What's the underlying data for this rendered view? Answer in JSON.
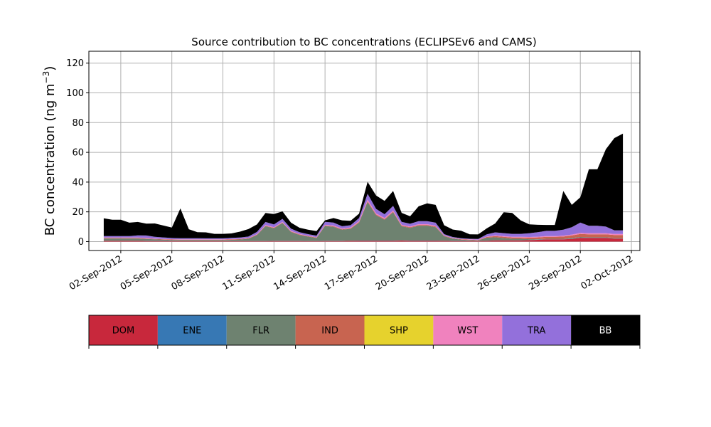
{
  "chart_data": {
    "type": "area",
    "title": "Source contribution to BC concentrations (ECLIPSEv6 and CAMS)",
    "xlabel": "",
    "ylabel": "BC concentration (ng m⁻³)",
    "ylabel_parts": [
      "BC concentration (ng m",
      "−3",
      ")"
    ],
    "stacked": true,
    "grid": true,
    "legend_position": "below plot, as a horizontal colour bar",
    "xlim": [
      "2012-08-31T03:00",
      "2012-10-02T12:00"
    ],
    "ylim": [
      -6,
      128
    ],
    "xticks": [
      {
        "date": "2012-09-02",
        "label": "02-Sep-2012"
      },
      {
        "date": "2012-09-05",
        "label": "05-Sep-2012"
      },
      {
        "date": "2012-09-08",
        "label": "08-Sep-2012"
      },
      {
        "date": "2012-09-11",
        "label": "11-Sep-2012"
      },
      {
        "date": "2012-09-14",
        "label": "14-Sep-2012"
      },
      {
        "date": "2012-09-17",
        "label": "17-Sep-2012"
      },
      {
        "date": "2012-09-20",
        "label": "20-Sep-2012"
      },
      {
        "date": "2012-09-23",
        "label": "23-Sep-2012"
      },
      {
        "date": "2012-09-26",
        "label": "26-Sep-2012"
      },
      {
        "date": "2012-09-29",
        "label": "29-Sep-2012"
      },
      {
        "date": "2012-10-02",
        "label": "02-Oct-2012"
      }
    ],
    "yticks": [
      0,
      20,
      40,
      60,
      80,
      100,
      120
    ],
    "x": [
      "2012-09-01T00:00",
      "2012-09-01T12:00",
      "2012-09-02T00:00",
      "2012-09-02T12:00",
      "2012-09-03T00:00",
      "2012-09-03T12:00",
      "2012-09-04T00:00",
      "2012-09-04T12:00",
      "2012-09-05T00:00",
      "2012-09-05T12:00",
      "2012-09-06T00:00",
      "2012-09-06T12:00",
      "2012-09-07T00:00",
      "2012-09-07T12:00",
      "2012-09-08T00:00",
      "2012-09-08T12:00",
      "2012-09-09T00:00",
      "2012-09-09T12:00",
      "2012-09-10T00:00",
      "2012-09-10T12:00",
      "2012-09-11T00:00",
      "2012-09-11T12:00",
      "2012-09-12T00:00",
      "2012-09-12T12:00",
      "2012-09-13T00:00",
      "2012-09-13T12:00",
      "2012-09-14T00:00",
      "2012-09-14T12:00",
      "2012-09-15T00:00",
      "2012-09-15T12:00",
      "2012-09-16T00:00",
      "2012-09-16T12:00",
      "2012-09-17T00:00",
      "2012-09-17T12:00",
      "2012-09-18T00:00",
      "2012-09-18T12:00",
      "2012-09-19T00:00",
      "2012-09-19T12:00",
      "2012-09-20T00:00",
      "2012-09-20T12:00",
      "2012-09-21T00:00",
      "2012-09-21T12:00",
      "2012-09-22T00:00",
      "2012-09-22T12:00",
      "2012-09-23T00:00",
      "2012-09-23T12:00",
      "2012-09-24T00:00",
      "2012-09-24T12:00",
      "2012-09-25T00:00",
      "2012-09-25T12:00",
      "2012-09-26T00:00",
      "2012-09-26T12:00",
      "2012-09-27T00:00",
      "2012-09-27T12:00",
      "2012-09-28T00:00",
      "2012-09-28T12:00",
      "2012-09-29T00:00",
      "2012-09-29T12:00",
      "2012-09-30T00:00",
      "2012-09-30T12:00",
      "2012-10-01T00:00",
      "2012-10-01T12:00"
    ],
    "series": [
      {
        "name": "DOM",
        "color": "#c8283c",
        "values": [
          0.5,
          0.5,
          0.5,
          0.5,
          0.5,
          0.4,
          0.4,
          0.4,
          0.3,
          0.3,
          0.3,
          0.3,
          0.3,
          0.3,
          0.3,
          0.3,
          0.3,
          0.3,
          0.3,
          0.3,
          0.4,
          0.4,
          0.4,
          0.4,
          0.3,
          0.3,
          0.4,
          0.4,
          0.4,
          0.5,
          0.6,
          0.6,
          0.6,
          0.6,
          0.6,
          0.7,
          0.6,
          0.6,
          0.6,
          0.6,
          0.5,
          0.4,
          0.4,
          0.4,
          0.4,
          0.5,
          0.8,
          0.8,
          0.8,
          0.8,
          1.0,
          1.2,
          1.5,
          1.5,
          1.5,
          1.8,
          2.5,
          2.5,
          2.5,
          2.5,
          2.0,
          2.0
        ]
      },
      {
        "name": "ENE",
        "color": "#3778b4",
        "values": [
          0.1,
          0.1,
          0.1,
          0.1,
          0.1,
          0.1,
          0.1,
          0.1,
          0.1,
          0.1,
          0.1,
          0.1,
          0.1,
          0.1,
          0.1,
          0.1,
          0.1,
          0.1,
          0.1,
          0.1,
          0.1,
          0.1,
          0.1,
          0.1,
          0.1,
          0.1,
          0.1,
          0.1,
          0.1,
          0.1,
          0.1,
          0.1,
          0.1,
          0.1,
          0.1,
          0.1,
          0.1,
          0.1,
          0.1,
          0.1,
          0.1,
          0.1,
          0.1,
          0.1,
          0.1,
          0.1,
          0.1,
          0.1,
          0.1,
          0.1,
          0.1,
          0.1,
          0.1,
          0.1,
          0.1,
          0.1,
          0.1,
          0.1,
          0.1,
          0.1,
          0.1,
          0.1
        ]
      },
      {
        "name": "FLR",
        "color": "#6e8270",
        "values": [
          1.5,
          1.5,
          1.5,
          1.5,
          1.5,
          1.3,
          1.0,
          0.8,
          0.7,
          0.6,
          0.6,
          0.6,
          0.6,
          0.6,
          0.6,
          0.8,
          1.0,
          1.5,
          4.0,
          10,
          8.5,
          12,
          6.0,
          4.0,
          3.0,
          2.0,
          10,
          9.5,
          7.5,
          8.0,
          12,
          26,
          17,
          14,
          19,
          9.5,
          8.5,
          10,
          10,
          9.0,
          3.0,
          1.5,
          0.8,
          0.5,
          0.3,
          2.0,
          2.0,
          1.5,
          1.0,
          1.0,
          0.5,
          0.3,
          0.3,
          0.3,
          0.3,
          0.5,
          0.5,
          0.3,
          0.3,
          0.3,
          0.3,
          0.3
        ]
      },
      {
        "name": "IND",
        "color": "#c86450",
        "values": [
          0.3,
          0.3,
          0.3,
          0.3,
          0.3,
          0.3,
          0.3,
          0.3,
          0.3,
          0.3,
          0.3,
          0.3,
          0.3,
          0.3,
          0.3,
          0.3,
          0.3,
          0.3,
          0.3,
          0.3,
          0.3,
          0.3,
          0.3,
          0.3,
          0.3,
          0.3,
          0.3,
          0.3,
          0.3,
          0.4,
          0.5,
          0.5,
          0.5,
          0.5,
          0.5,
          0.5,
          0.5,
          0.5,
          0.5,
          0.5,
          0.3,
          0.3,
          0.3,
          0.3,
          0.3,
          0.5,
          0.8,
          0.8,
          0.8,
          0.8,
          1.0,
          1.2,
          1.3,
          1.3,
          1.5,
          1.7,
          2.0,
          2.0,
          2.0,
          2.0,
          2.0,
          2.0
        ]
      },
      {
        "name": "SHP",
        "color": "#e6d22d",
        "values": [
          0.0,
          0.0,
          0.0,
          0.0,
          0.0,
          0.0,
          0.0,
          0.0,
          0.0,
          0.0,
          0.0,
          0.0,
          0.0,
          0.0,
          0.0,
          0.0,
          0.0,
          0.0,
          0.0,
          0.0,
          0.0,
          0.0,
          0.0,
          0.0,
          0.0,
          0.0,
          0.0,
          0.0,
          0.0,
          0.0,
          0.0,
          0.0,
          0.0,
          0.0,
          0.0,
          0.0,
          0.0,
          0.0,
          0.0,
          0.0,
          0.0,
          0.0,
          0.0,
          0.0,
          0.0,
          0.0,
          0.0,
          0.0,
          0.0,
          0.0,
          0.0,
          0.0,
          0.0,
          0.0,
          0.0,
          0.0,
          0.0,
          0.0,
          0.0,
          0.0,
          0.0,
          0.0
        ]
      },
      {
        "name": "WST",
        "color": "#f082be",
        "values": [
          0.3,
          0.3,
          0.3,
          0.3,
          0.3,
          0.3,
          0.2,
          0.2,
          0.2,
          0.2,
          0.2,
          0.2,
          0.2,
          0.2,
          0.2,
          0.2,
          0.2,
          0.2,
          0.3,
          0.5,
          0.4,
          0.5,
          0.4,
          0.3,
          0.3,
          0.3,
          0.5,
          0.5,
          0.5,
          0.5,
          0.6,
          1.0,
          0.8,
          0.7,
          0.8,
          0.5,
          0.5,
          0.5,
          0.5,
          0.5,
          0.3,
          0.2,
          0.2,
          0.2,
          0.2,
          0.3,
          0.5,
          0.5,
          0.5,
          0.5,
          0.5,
          0.5,
          0.5,
          0.5,
          0.6,
          0.6,
          0.7,
          0.7,
          0.7,
          0.7,
          0.7,
          0.7
        ]
      },
      {
        "name": "TRA",
        "color": "#9370db",
        "values": [
          1.0,
          1.0,
          1.0,
          1.0,
          1.5,
          1.7,
          1.2,
          1.0,
          0.8,
          0.8,
          0.8,
          0.8,
          0.7,
          0.7,
          0.7,
          0.8,
          0.8,
          1.0,
          1.5,
          2.0,
          1.8,
          2.0,
          1.5,
          1.2,
          1.0,
          1.0,
          2.0,
          2.0,
          1.5,
          1.5,
          2.0,
          4.0,
          3.0,
          2.5,
          3.0,
          2.0,
          1.8,
          2.0,
          2.0,
          2.0,
          0.8,
          0.6,
          0.5,
          0.4,
          0.5,
          1.5,
          2.0,
          2.0,
          2.0,
          2.0,
          2.5,
          3.0,
          3.5,
          3.5,
          4.0,
          5.0,
          7.0,
          5.0,
          5.0,
          4.5,
          2.5,
          2.5
        ]
      },
      {
        "name": "BB",
        "color": "#000000",
        "values": [
          12,
          11,
          11,
          9,
          9,
          8,
          9,
          8,
          7,
          20,
          6,
          4,
          4,
          3,
          3,
          3,
          4,
          5,
          5,
          6,
          7,
          5,
          4,
          3,
          3,
          3,
          1,
          3,
          4,
          3,
          3,
          8,
          9,
          9,
          10,
          6,
          5,
          10,
          12,
          12,
          6,
          5,
          5,
          3,
          3,
          4,
          6,
          14,
          14,
          9,
          6,
          5,
          4,
          4,
          26,
          15,
          17,
          38,
          38,
          52,
          62,
          65
        ]
      }
    ]
  },
  "legend": {
    "items": [
      {
        "label": "DOM",
        "color": "#c8283c",
        "text_color": "#000000"
      },
      {
        "label": "ENE",
        "color": "#3778b4",
        "text_color": "#000000"
      },
      {
        "label": "FLR",
        "color": "#6e8270",
        "text_color": "#000000"
      },
      {
        "label": "IND",
        "color": "#c86450",
        "text_color": "#000000"
      },
      {
        "label": "SHP",
        "color": "#e6d22d",
        "text_color": "#000000"
      },
      {
        "label": "WST",
        "color": "#f082be",
        "text_color": "#000000"
      },
      {
        "label": "TRA",
        "color": "#9370db",
        "text_color": "#000000"
      },
      {
        "label": "BB",
        "color": "#000000",
        "text_color": "#ffffff"
      }
    ]
  }
}
